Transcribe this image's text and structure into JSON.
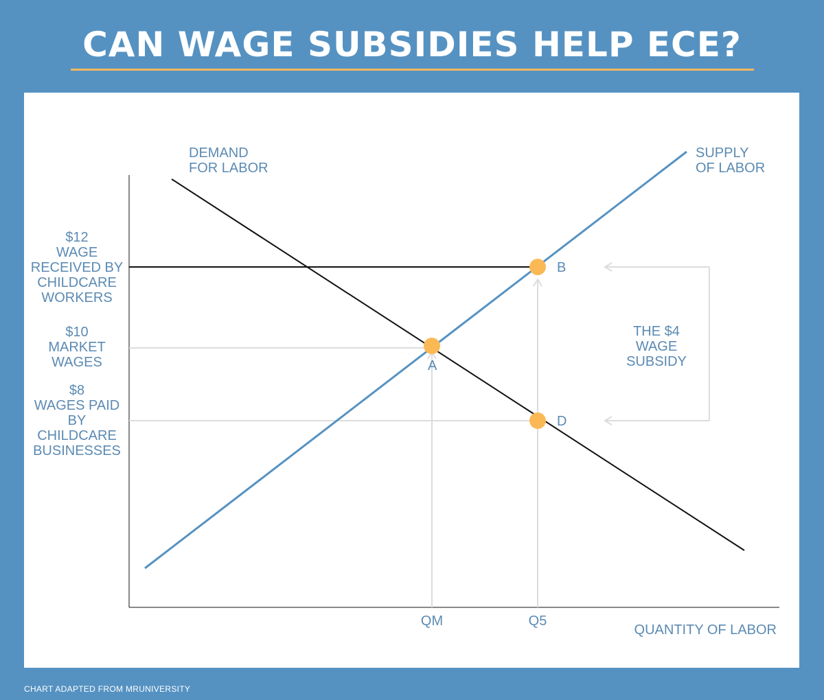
{
  "title": "CAN WAGE SUBSIDIES HELP ECE?",
  "footer": "CHART ADAPTED FROM MRUNIVERSITY",
  "diagram": {
    "demand_label": [
      "DEMAND",
      "FOR LABOR"
    ],
    "supply_label": [
      "SUPPLY",
      "OF LABOR"
    ],
    "x_axis_label": "QUANTITY OF LABOR",
    "wage_levels": [
      {
        "id": "received",
        "value": 12,
        "label_lines": [
          "$12",
          "WAGE",
          "RECEIVED BY",
          "CHILDCARE",
          "WORKERS"
        ]
      },
      {
        "id": "market",
        "value": 10,
        "label_lines": [
          "$10",
          "MARKET",
          "WAGES"
        ]
      },
      {
        "id": "paid",
        "value": 8,
        "label_lines": [
          "$8",
          "WAGES PAID",
          "BY",
          "CHILDCARE",
          "BUSINESSES"
        ]
      }
    ],
    "quantity_ticks": [
      "QM",
      "Q5"
    ],
    "points": [
      {
        "label": "A",
        "wage": 10,
        "quantity": "QM"
      },
      {
        "label": "B",
        "wage": 12,
        "quantity": "Q5"
      },
      {
        "label": "D",
        "wage": 8,
        "quantity": "Q5"
      }
    ],
    "subsidy_label": [
      "THE $4",
      "WAGE",
      "SUBSIDY"
    ],
    "colors": {
      "background": "#5592c2",
      "supply": "#5592c2",
      "demand": "#111111",
      "guide": "#dcdcdc",
      "point": "#fbb955",
      "text": "#5b8ab3",
      "accent_rule": "#f6b85c"
    }
  }
}
